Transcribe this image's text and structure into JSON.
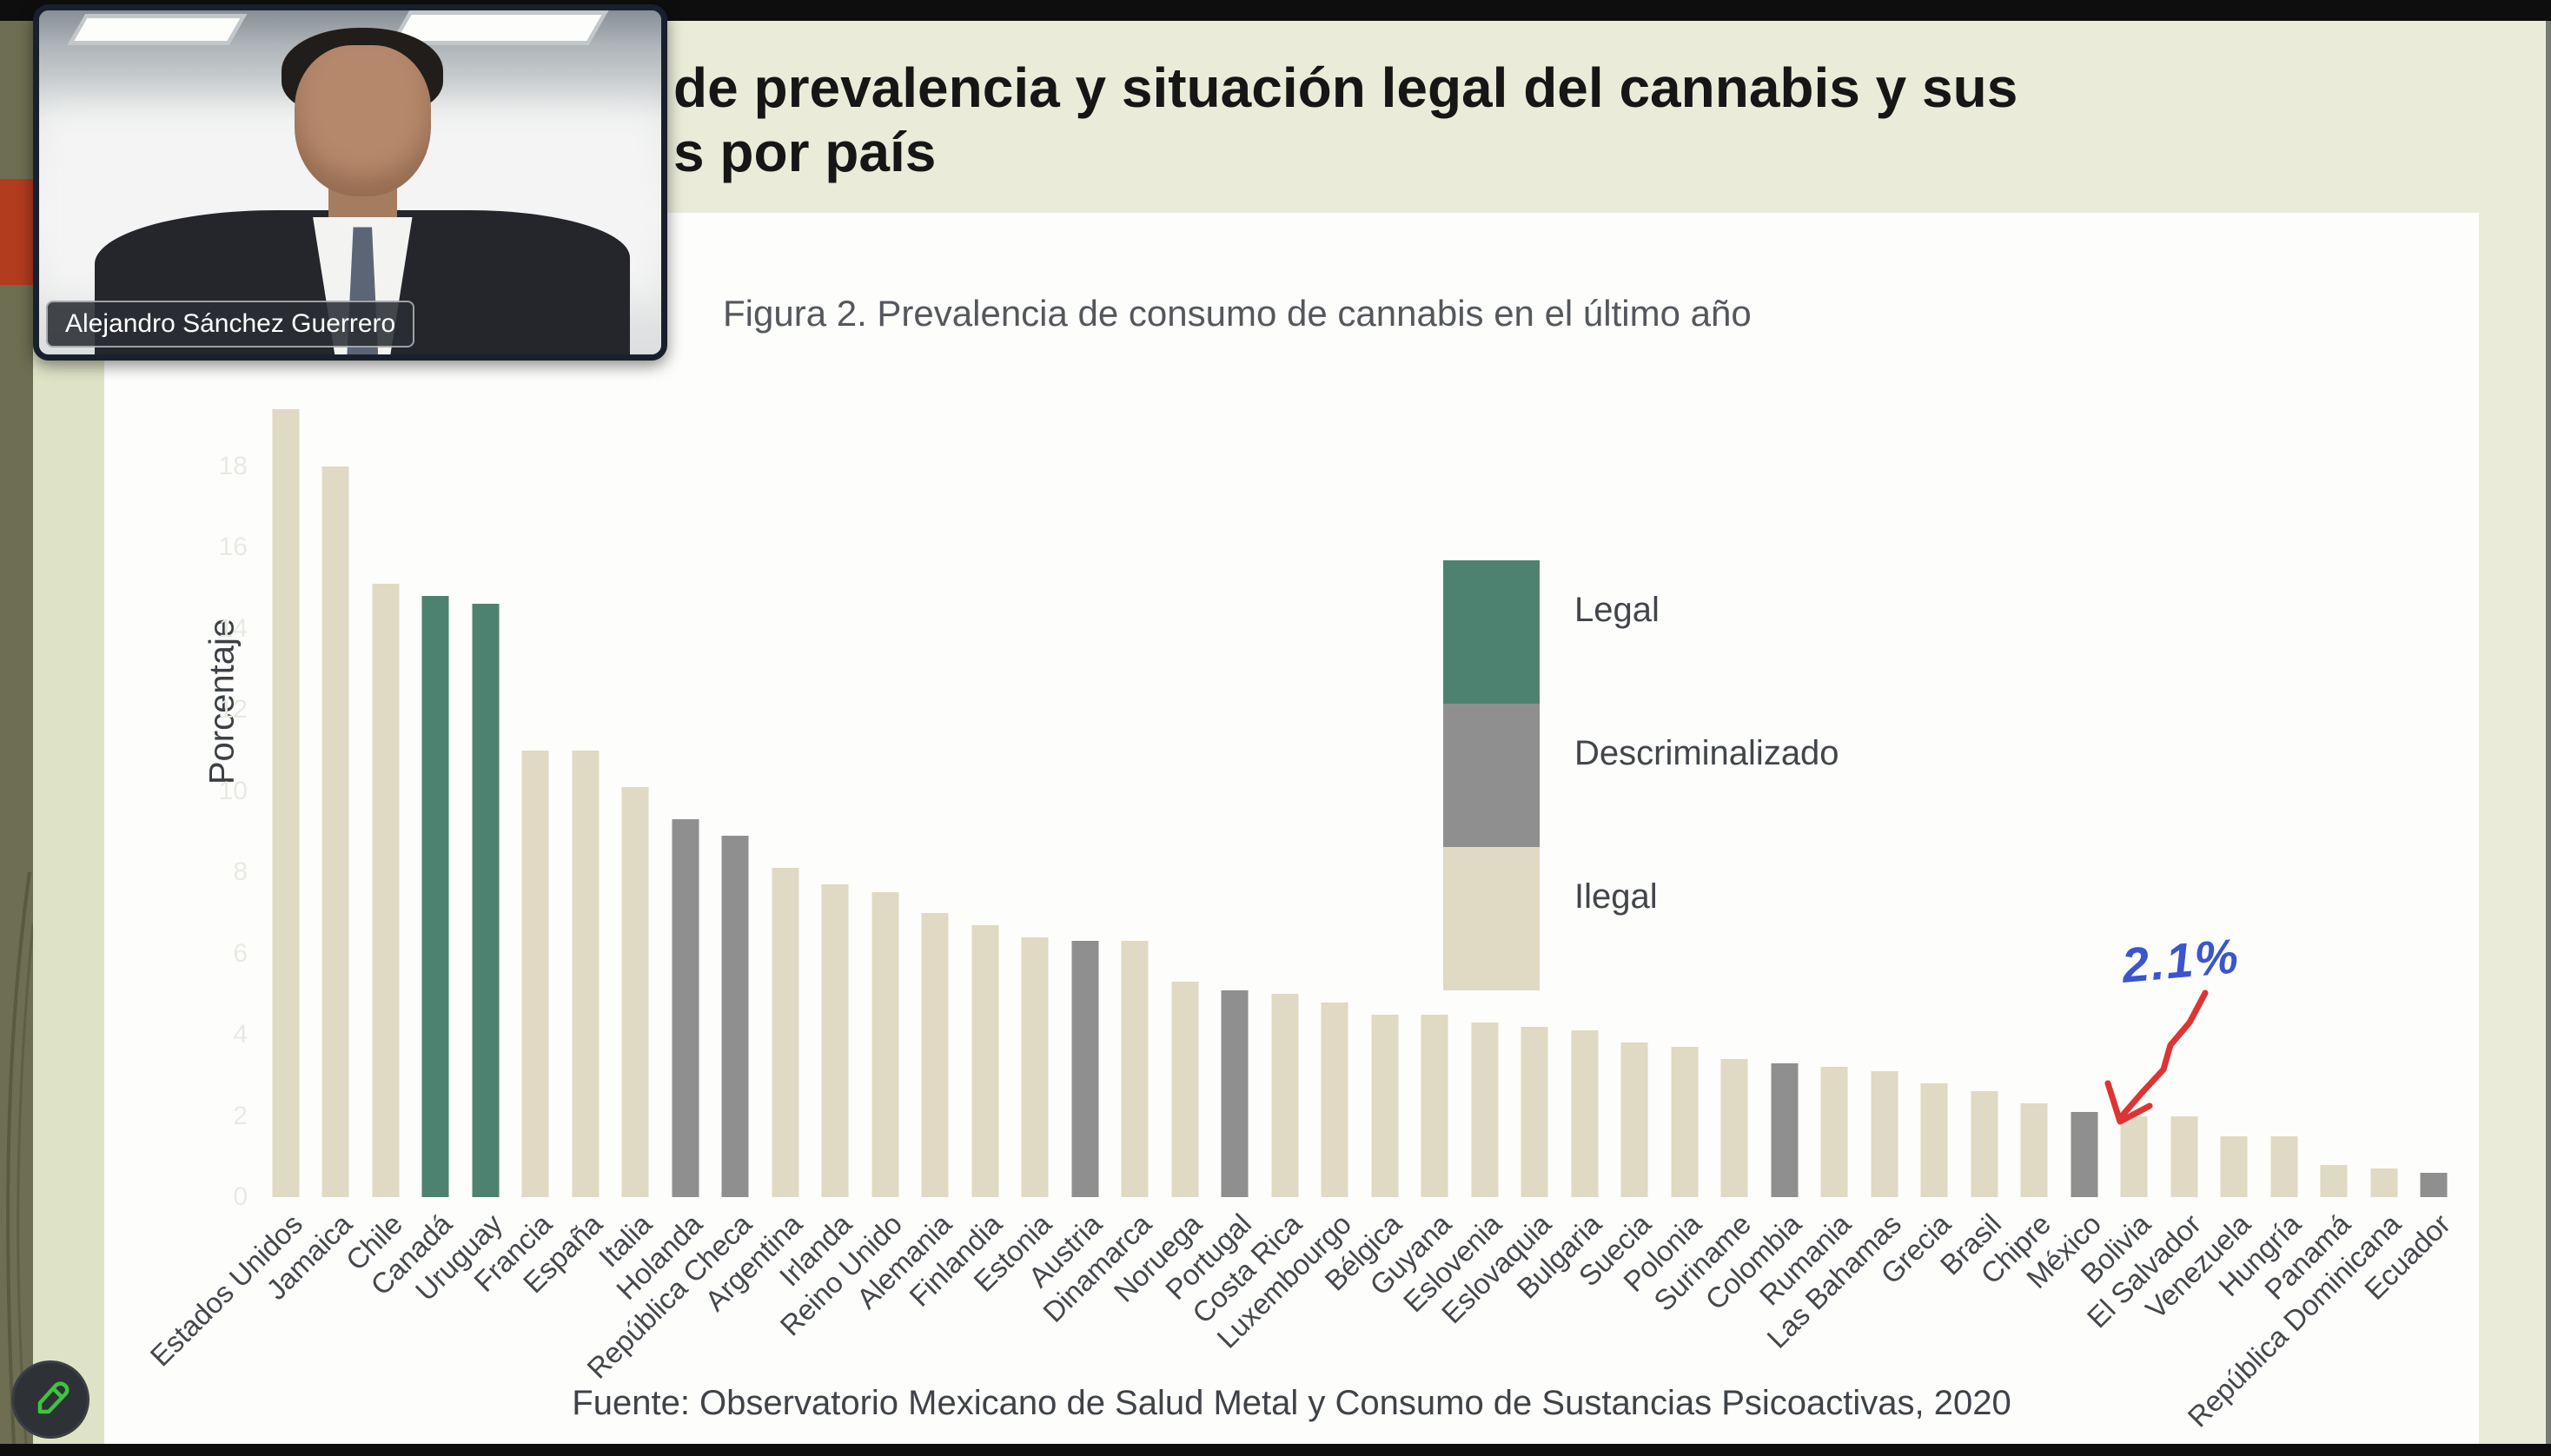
{
  "meeting": {
    "participant_name": "Alejandro Sánchez Guerrero",
    "annotate_tool": "pencil"
  },
  "slide": {
    "title_line1": "de prevalencia y situación legal del cannabis y sus",
    "title_line2": "s por país",
    "figure_title": "Figura 2. Prevalencia de consumo de cannabis en el último año",
    "source": "Fuente: Observatorio Mexicano de Salud Metal y Consumo de Sustancias Psicoactivas, 2020",
    "annotation": {
      "text": "2.1%",
      "target": "México",
      "text_color": "#3b55cc",
      "arrow_color": "#dd3434"
    }
  },
  "legend": {
    "position": "center-right",
    "items": [
      {
        "label": "Legal",
        "color": "#4d8270"
      },
      {
        "label": "Descriminalizado",
        "color": "#8f8f8f"
      },
      {
        "label": "Ilegal",
        "color": "#e0d9c3"
      }
    ]
  },
  "chart_data": {
    "type": "bar",
    "title": "Figura 2. Prevalencia de consumo de cannabis en el último año",
    "xlabel": "",
    "ylabel": "Porcentaje",
    "ylim": [
      0,
      20
    ],
    "yticks": [
      0,
      2,
      4,
      6,
      8,
      10,
      12,
      14,
      16,
      18
    ],
    "grid": false,
    "status_colors": {
      "legal": "#4d8270",
      "descriminalizado": "#8f8f8f",
      "ilegal": "#e0d9c3"
    },
    "categories": [
      "Estados Unidos",
      "Jamaica",
      "Chile",
      "Canadá",
      "Uruguay",
      "Francia",
      "España",
      "Italia",
      "Holanda",
      "República Checa",
      "Argentina",
      "Irlanda",
      "Reino Unido",
      "Alemania",
      "Finlandia",
      "Estonia",
      "Austria",
      "Dinamarca",
      "Noruega",
      "Portugal",
      "Costa Rica",
      "Luxembourgo",
      "Bélgica",
      "Guyana",
      "Eslovenia",
      "Eslovaquia",
      "Bulgaria",
      "Suecia",
      "Polonia",
      "Suriname",
      "Colombia",
      "Rumania",
      "Las Bahamas",
      "Grecia",
      "Brasil",
      "Chipre",
      "México",
      "Bolivia",
      "El Salvador",
      "Venezuela",
      "Hungría",
      "Panamá",
      "República Dominicana",
      "Ecuador"
    ],
    "values": [
      19.4,
      18.0,
      15.1,
      14.8,
      14.6,
      11.0,
      11.0,
      10.1,
      9.3,
      8.9,
      8.1,
      7.7,
      7.5,
      7.0,
      6.7,
      6.4,
      6.3,
      6.3,
      5.3,
      5.1,
      5.0,
      4.8,
      4.5,
      4.5,
      4.3,
      4.2,
      4.1,
      3.8,
      3.7,
      3.4,
      3.3,
      3.2,
      3.1,
      2.8,
      2.6,
      2.3,
      2.1,
      2.0,
      2.0,
      1.5,
      1.5,
      0.8,
      0.7,
      0.6
    ],
    "status": [
      "ilegal",
      "ilegal",
      "ilegal",
      "legal",
      "legal",
      "ilegal",
      "ilegal",
      "ilegal",
      "descriminalizado",
      "descriminalizado",
      "ilegal",
      "ilegal",
      "ilegal",
      "ilegal",
      "ilegal",
      "ilegal",
      "descriminalizado",
      "ilegal",
      "ilegal",
      "descriminalizado",
      "ilegal",
      "ilegal",
      "ilegal",
      "ilegal",
      "ilegal",
      "ilegal",
      "ilegal",
      "ilegal",
      "ilegal",
      "ilegal",
      "descriminalizado",
      "ilegal",
      "ilegal",
      "ilegal",
      "ilegal",
      "ilegal",
      "descriminalizado",
      "ilegal",
      "ilegal",
      "ilegal",
      "ilegal",
      "ilegal",
      "ilegal",
      "descriminalizado"
    ]
  }
}
